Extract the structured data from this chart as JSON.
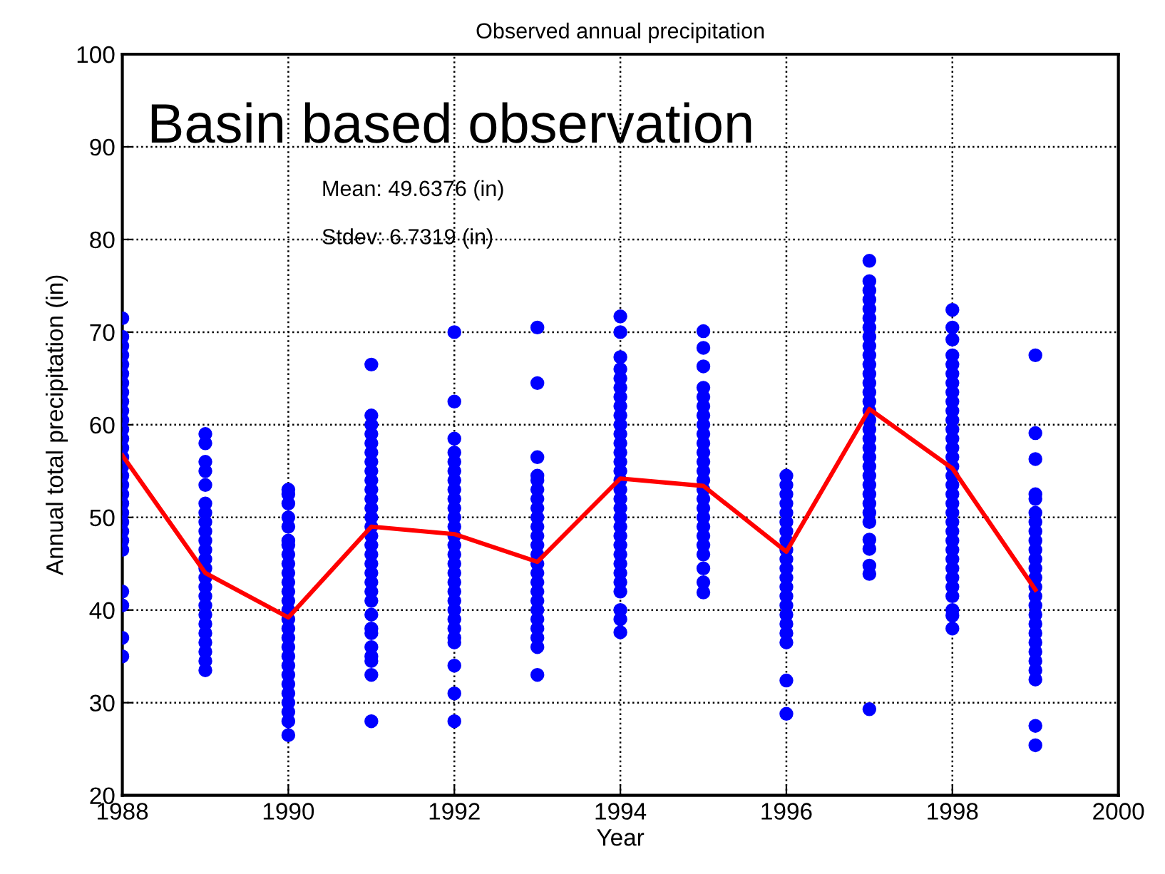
{
  "chart_data": {
    "type": "scatter",
    "title": "Observed annual precipitation",
    "xlabel": "Year",
    "ylabel": "Annual total precipitation (in)",
    "annotations": [
      "Basin based observation",
      "Mean: 49.6376 (in)",
      "Stdev: 6.7319 (in)"
    ],
    "xlim": [
      1988,
      2000
    ],
    "xticks": [
      1988,
      1990,
      1992,
      1994,
      1996,
      1998,
      2000
    ],
    "ylim": [
      20,
      100
    ],
    "yticks": [
      20,
      30,
      40,
      50,
      60,
      70,
      80,
      90,
      100
    ],
    "grid": true,
    "legend": false,
    "series": [
      {
        "color": "#0000ff",
        "marker": "circle",
        "x": [
          1988,
          1988,
          1988,
          1988,
          1988,
          1988,
          1988,
          1988,
          1988,
          1988,
          1988,
          1988,
          1988,
          1988,
          1988,
          1988,
          1988,
          1988,
          1988,
          1988,
          1988,
          1988,
          1988,
          1988,
          1988,
          1988,
          1988,
          1988,
          1988,
          1989,
          1989,
          1989,
          1989,
          1989,
          1989,
          1989,
          1989,
          1989,
          1989,
          1989,
          1989,
          1989,
          1989,
          1989,
          1989,
          1989,
          1989,
          1989,
          1989,
          1989,
          1989,
          1989,
          1989,
          1990,
          1990,
          1990,
          1990,
          1990,
          1990,
          1990,
          1990,
          1990,
          1990,
          1990,
          1990,
          1990,
          1990,
          1990,
          1990,
          1990,
          1990,
          1990,
          1990,
          1990,
          1990,
          1990,
          1990,
          1990,
          1990,
          1990,
          1991,
          1991,
          1991,
          1991,
          1991,
          1991,
          1991,
          1991,
          1991,
          1991,
          1991,
          1991,
          1991,
          1991,
          1991,
          1991,
          1991,
          1991,
          1991,
          1991,
          1991,
          1991,
          1991,
          1991,
          1991,
          1991,
          1991,
          1991,
          1991,
          1991,
          1992,
          1992,
          1992,
          1992,
          1992,
          1992,
          1992,
          1992,
          1992,
          1992,
          1992,
          1992,
          1992,
          1992,
          1992,
          1992,
          1992,
          1992,
          1992,
          1992,
          1992,
          1992,
          1992,
          1992,
          1992,
          1992,
          1992,
          1992,
          1993,
          1993,
          1993,
          1993,
          1993,
          1993,
          1993,
          1993,
          1993,
          1993,
          1993,
          1993,
          1993,
          1993,
          1993,
          1993,
          1993,
          1993,
          1993,
          1993,
          1993,
          1993,
          1993,
          1993,
          1994,
          1994,
          1994,
          1994,
          1994,
          1994,
          1994,
          1994,
          1994,
          1994,
          1994,
          1994,
          1994,
          1994,
          1994,
          1994,
          1994,
          1994,
          1994,
          1994,
          1994,
          1994,
          1994,
          1994,
          1994,
          1994,
          1994,
          1994,
          1994,
          1994,
          1994,
          1995,
          1995,
          1995,
          1995,
          1995,
          1995,
          1995,
          1995,
          1995,
          1995,
          1995,
          1995,
          1995,
          1995,
          1995,
          1995,
          1995,
          1995,
          1995,
          1995,
          1995,
          1995,
          1995,
          1995,
          1995,
          1996,
          1996,
          1996,
          1996,
          1996,
          1996,
          1996,
          1996,
          1996,
          1996,
          1996,
          1996,
          1996,
          1996,
          1996,
          1996,
          1996,
          1996,
          1996,
          1996,
          1996,
          1997,
          1997,
          1997,
          1997,
          1997,
          1997,
          1997,
          1997,
          1997,
          1997,
          1997,
          1997,
          1997,
          1997,
          1997,
          1997,
          1997,
          1997,
          1997,
          1997,
          1997,
          1997,
          1997,
          1997,
          1997,
          1997,
          1997,
          1997,
          1997,
          1997,
          1997,
          1997,
          1997,
          1998,
          1998,
          1998,
          1998,
          1998,
          1998,
          1998,
          1998,
          1998,
          1998,
          1998,
          1998,
          1998,
          1998,
          1998,
          1998,
          1998,
          1998,
          1998,
          1998,
          1998,
          1998,
          1998,
          1998,
          1998,
          1998,
          1998,
          1998,
          1998,
          1998,
          1998,
          1998,
          1998,
          1999,
          1999,
          1999,
          1999,
          1999,
          1999,
          1999,
          1999,
          1999,
          1999,
          1999,
          1999,
          1999,
          1999,
          1999,
          1999,
          1999,
          1999,
          1999,
          1999,
          1999,
          1999,
          1999,
          1999,
          1999,
          1999
        ],
        "values": [
          35,
          37,
          40.5,
          42,
          46.5,
          47.5,
          48.5,
          49.5,
          50.5,
          51.5,
          52.5,
          53.5,
          54.5,
          55.5,
          56.5,
          57.5,
          58.5,
          59.5,
          60.5,
          61.5,
          62.5,
          63.5,
          64.5,
          65.5,
          66.5,
          67.5,
          68.5,
          69.5,
          71.5,
          33.5,
          34.5,
          35.5,
          36.5,
          37.5,
          38.5,
          39.5,
          40.5,
          41.5,
          42.5,
          43.5,
          44.5,
          45.5,
          46.5,
          47.5,
          48.5,
          49.5,
          50.5,
          51.5,
          53.5,
          55,
          56,
          58,
          59,
          26.5,
          28,
          29,
          30,
          31,
          32,
          33,
          34,
          35,
          36,
          37,
          38,
          39,
          40,
          41,
          42,
          43,
          44,
          45,
          46,
          47,
          47.5,
          49,
          50,
          51.5,
          52.5,
          53,
          28,
          33,
          34.5,
          35,
          36,
          37.5,
          38,
          39.5,
          41,
          42,
          43,
          44,
          45,
          46,
          47,
          48,
          49,
          50,
          51,
          52,
          53,
          54,
          55,
          56,
          57,
          58,
          59,
          60,
          61,
          66.5,
          28,
          31,
          34,
          36.5,
          37,
          38,
          39,
          40,
          41,
          42,
          43,
          44,
          45,
          46,
          47,
          48,
          49,
          50,
          51,
          52,
          53,
          54,
          55,
          56,
          57,
          58.5,
          62.5,
          70,
          33,
          36,
          37,
          38,
          39,
          40,
          41,
          42,
          43,
          44,
          45,
          46,
          47,
          48,
          49,
          50,
          51,
          52,
          53,
          54,
          54.5,
          56.5,
          64.5,
          70.5,
          37.6,
          39,
          40,
          42,
          43,
          44,
          45,
          46,
          47,
          48,
          49,
          50,
          51,
          52,
          53,
          54,
          55,
          56,
          57,
          58,
          59,
          60,
          61,
          62,
          63,
          64,
          65,
          66,
          67.3,
          70,
          71.7,
          41.9,
          43,
          44.5,
          46,
          47,
          48,
          49,
          50,
          51,
          52,
          53,
          54,
          55,
          56,
          57,
          58,
          59,
          60,
          61,
          62,
          63,
          64,
          66.3,
          68.3,
          70.1,
          28.8,
          32.4,
          36.5,
          37.5,
          38.5,
          39.5,
          40.5,
          41.5,
          42.5,
          43.5,
          44.5,
          45.5,
          46.5,
          47.5,
          48.5,
          49.5,
          50.5,
          51.5,
          52.5,
          53.5,
          54.5,
          29.3,
          43.9,
          44.8,
          46.6,
          47.6,
          49.5,
          50.5,
          51.5,
          52.5,
          53.5,
          54.5,
          55.5,
          56.5,
          57.5,
          58.5,
          59.5,
          60.5,
          61.5,
          62.5,
          63.5,
          64.5,
          65.5,
          66.5,
          67.5,
          68.5,
          69.5,
          70.5,
          71.5,
          72.5,
          73.5,
          74.5,
          75.5,
          77.7,
          38,
          39.4,
          40,
          41.5,
          42.5,
          43.5,
          44.5,
          45.5,
          46.5,
          47.5,
          48.5,
          49.5,
          50.5,
          51.5,
          52.5,
          53.5,
          54.5,
          55.5,
          56.5,
          57.5,
          58.5,
          59.5,
          60.5,
          61.5,
          62.5,
          63.5,
          64.5,
          65.5,
          66.5,
          67.5,
          69.2,
          70.5,
          72.4,
          25.4,
          27.5,
          32.5,
          33.5,
          34.5,
          35.5,
          36.5,
          37.5,
          38.5,
          39.5,
          40.5,
          41.5,
          42.5,
          43.5,
          44.5,
          45.5,
          46.5,
          47.5,
          48.5,
          49.5,
          50.5,
          52,
          52.5,
          56.3,
          59.1,
          67.5
        ]
      },
      {
        "type": "line",
        "color": "#ff0000",
        "marker": "none",
        "line_style": "solid",
        "x": [
          1988,
          1989,
          1990,
          1991,
          1992,
          1993,
          1994,
          1995,
          1996,
          1997,
          1998,
          1999
        ],
        "values": [
          56.7,
          44,
          39.2,
          49,
          48.2,
          45.2,
          54.2,
          53.4,
          46.3,
          61.7,
          55.3,
          42.2
        ]
      }
    ]
  }
}
